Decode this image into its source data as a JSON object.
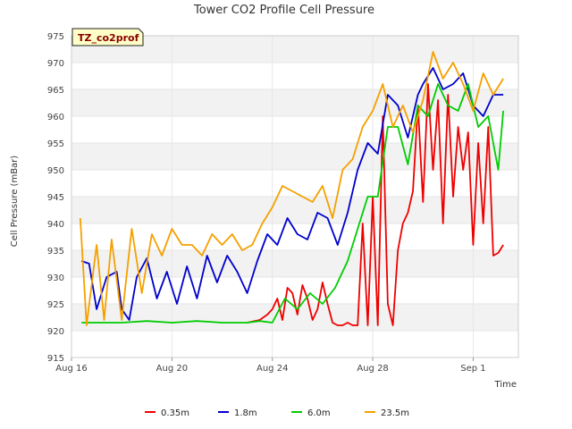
{
  "chart_data": {
    "type": "line",
    "title": "Tower CO2 Profile Cell Pressure",
    "badge": "TZ_co2prof",
    "xlabel": "Time",
    "ylabel": "Cell Pressure (mBar)",
    "x_unit": "days since Aug 16",
    "xlim": [
      0,
      17.8
    ],
    "ylim": [
      915,
      975
    ],
    "x_ticks": [
      {
        "value": 0,
        "label": "Aug 16"
      },
      {
        "value": 4,
        "label": "Aug 20"
      },
      {
        "value": 8,
        "label": "Aug 24"
      },
      {
        "value": 12,
        "label": "Aug 28"
      },
      {
        "value": 16,
        "label": "Sep 1"
      }
    ],
    "y_ticks": [
      915,
      920,
      925,
      930,
      935,
      940,
      945,
      950,
      955,
      960,
      965,
      970,
      975
    ],
    "grid": true,
    "legend_placement": "bottom",
    "series": [
      {
        "name": "0.35m",
        "color": "#ee0000",
        "x": [
          7.0,
          7.5,
          7.8,
          8.0,
          8.2,
          8.4,
          8.6,
          8.8,
          9.0,
          9.2,
          9.4,
          9.6,
          9.8,
          10.0,
          10.2,
          10.4,
          10.6,
          10.8,
          11.0,
          11.2,
          11.4,
          11.6,
          11.8,
          12.0,
          12.2,
          12.4,
          12.6,
          12.8,
          13.0,
          13.2,
          13.4,
          13.6,
          13.8,
          14.0,
          14.2,
          14.4,
          14.6,
          14.8,
          15.0,
          15.2,
          15.4,
          15.6,
          15.8,
          16.0,
          16.2,
          16.4,
          16.6,
          16.8,
          17.0,
          17.2
        ],
        "y": [
          921.5,
          922.0,
          923.0,
          924.0,
          926.0,
          922.0,
          928.0,
          927.0,
          923.0,
          928.5,
          926.0,
          922.0,
          924.0,
          929.0,
          925.0,
          921.5,
          921.0,
          921.0,
          921.5,
          921.0,
          921.0,
          940.0,
          921.0,
          945.0,
          921.0,
          960.0,
          925.0,
          921.0,
          935.0,
          940.0,
          942.0,
          946.0,
          962.0,
          944.0,
          966.0,
          950.0,
          963.0,
          940.0,
          964.0,
          945.0,
          958.0,
          950.0,
          957.0,
          936.0,
          955.0,
          940.0,
          958.0,
          934.0,
          934.5,
          936.0
        ]
      },
      {
        "name": "1.8m",
        "color": "#0000cc",
        "x": [
          0.4,
          0.7,
          1.0,
          1.4,
          1.8,
          2.0,
          2.3,
          2.6,
          3.0,
          3.4,
          3.8,
          4.2,
          4.6,
          5.0,
          5.4,
          5.8,
          6.2,
          6.6,
          7.0,
          7.4,
          7.8,
          8.2,
          8.6,
          9.0,
          9.4,
          9.8,
          10.2,
          10.6,
          11.0,
          11.4,
          11.8,
          12.2,
          12.6,
          13.0,
          13.4,
          13.8,
          14.0,
          14.4,
          14.8,
          15.2,
          15.6,
          16.0,
          16.4,
          16.8,
          17.2
        ],
        "y": [
          933.0,
          932.5,
          924.0,
          930.0,
          931.0,
          924.0,
          922.0,
          930.0,
          933.5,
          926.0,
          931.0,
          925.0,
          932.0,
          926.0,
          934.0,
          929.0,
          934.0,
          931.0,
          927.0,
          933.0,
          938.0,
          936.0,
          941.0,
          938.0,
          937.0,
          942.0,
          941.0,
          936.0,
          942.0,
          950.0,
          955.0,
          953.0,
          964.0,
          962.0,
          956.0,
          964.0,
          966.0,
          969.0,
          965.0,
          966.0,
          968.0,
          962.0,
          960.0,
          964.0,
          964.0
        ]
      },
      {
        "name": "6.0m",
        "color": "#00cc00",
        "x": [
          0.4,
          1.0,
          2.0,
          3.0,
          4.0,
          5.0,
          6.0,
          7.0,
          7.5,
          8.0,
          8.5,
          9.0,
          9.5,
          10.0,
          10.5,
          11.0,
          11.4,
          11.8,
          12.2,
          12.6,
          13.0,
          13.4,
          13.8,
          14.2,
          14.6,
          15.0,
          15.4,
          15.8,
          16.2,
          16.6,
          17.0,
          17.2
        ],
        "y": [
          921.5,
          921.5,
          921.5,
          921.8,
          921.5,
          921.8,
          921.5,
          921.5,
          921.8,
          921.5,
          926.0,
          924.0,
          927.0,
          925.0,
          928.0,
          933.0,
          939.0,
          945.0,
          945.0,
          958.0,
          958.0,
          951.0,
          962.0,
          960.0,
          966.0,
          962.0,
          961.0,
          966.0,
          958.0,
          960.0,
          950.0,
          961.0
        ]
      },
      {
        "name": "23.5m",
        "color": "#f5a000",
        "x": [
          0.35,
          0.6,
          1.0,
          1.3,
          1.6,
          2.0,
          2.4,
          2.8,
          3.2,
          3.6,
          4.0,
          4.4,
          4.8,
          5.2,
          5.6,
          6.0,
          6.4,
          6.8,
          7.2,
          7.6,
          8.0,
          8.4,
          8.8,
          9.2,
          9.6,
          10.0,
          10.4,
          10.8,
          11.2,
          11.6,
          12.0,
          12.4,
          12.8,
          13.2,
          13.6,
          14.0,
          14.4,
          14.8,
          15.2,
          15.6,
          16.0,
          16.4,
          16.8,
          17.2
        ],
        "y": [
          941.0,
          921.0,
          936.0,
          922.0,
          937.0,
          922.0,
          939.0,
          927.0,
          938.0,
          934.0,
          939.0,
          936.0,
          936.0,
          934.0,
          938.0,
          936.0,
          938.0,
          935.0,
          936.0,
          940.0,
          943.0,
          947.0,
          946.0,
          945.0,
          944.0,
          947.0,
          941.0,
          950.0,
          952.0,
          958.0,
          961.0,
          966.0,
          958.0,
          962.0,
          957.0,
          963.0,
          972.0,
          967.0,
          970.0,
          966.0,
          961.0,
          968.0,
          964.0,
          967.0
        ]
      }
    ]
  }
}
